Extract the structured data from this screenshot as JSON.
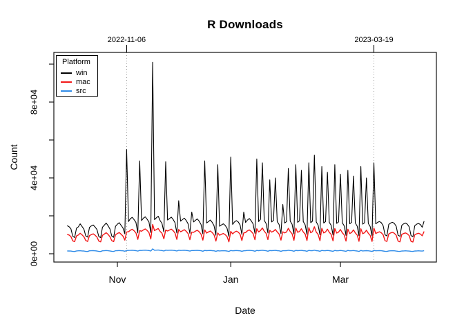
{
  "figure": {
    "title": "R Downloads",
    "background_color": "#FFFFFF"
  },
  "legend": {
    "title": "Platform",
    "position": "top-left"
  },
  "chart_data": {
    "type": "line",
    "title": "R Downloads",
    "xlabel": "Date",
    "ylabel": "Count",
    "x_start_date": "2022-10-05",
    "x_frequency": "daily",
    "n_points": 193,
    "ylim": [
      0,
      101000
    ],
    "grid": false,
    "legend_position": "top-left",
    "vline_color": "#999999",
    "axis_color": "#000000",
    "x_ticks": [
      {
        "date": "2022-11-01",
        "label": "Nov"
      },
      {
        "date": "2023-01-01",
        "label": "Jan"
      },
      {
        "date": "2023-03-01",
        "label": "Mar"
      }
    ],
    "y_ticks": [
      {
        "value": 0,
        "label": "0e+00"
      },
      {
        "value": 20000,
        "label": ""
      },
      {
        "value": 40000,
        "label": "4e+04"
      },
      {
        "value": 60000,
        "label": ""
      },
      {
        "value": 80000,
        "label": "8e+04"
      },
      {
        "value": 100000,
        "label": ""
      }
    ],
    "vlines": [
      {
        "date": "2022-11-06",
        "label": "2022-11-06"
      },
      {
        "date": "2023-03-19",
        "label": "2023-03-19"
      }
    ],
    "series": [
      {
        "name": "win",
        "color": "#000000",
        "width": 1.1,
        "values": [
          14800,
          14300,
          13200,
          9200,
          8600,
          13500,
          14200,
          15800,
          14400,
          13000,
          9400,
          8800,
          13900,
          14700,
          15200,
          14100,
          12800,
          9100,
          8500,
          14000,
          15100,
          16200,
          14800,
          13100,
          9300,
          8700,
          14500,
          15600,
          16400,
          15000,
          13600,
          10500,
          55000,
          17000,
          18500,
          19200,
          18000,
          16500,
          11000,
          49000,
          17500,
          18800,
          19500,
          18200,
          16800,
          11200,
          101000,
          18000,
          19000,
          19800,
          17500,
          16000,
          11500,
          48500,
          17800,
          18600,
          19300,
          18100,
          16400,
          11000,
          28000,
          17200,
          18000,
          18800,
          17600,
          15900,
          10800,
          22000,
          16800,
          17600,
          18400,
          17200,
          15500,
          10500,
          49000,
          16200,
          17000,
          17800,
          16600,
          14800,
          9800,
          47000,
          14500,
          15200,
          15800,
          15000,
          13500,
          9200,
          51000,
          15500,
          16800,
          17500,
          16800,
          15200,
          10200,
          22000,
          16500,
          17800,
          18600,
          17400,
          15800,
          10800,
          50000,
          17000,
          18200,
          48000,
          17600,
          16000,
          11000,
          39000,
          16800,
          17600,
          40000,
          17000,
          15400,
          10600,
          26000,
          16200,
          17000,
          45000,
          17200,
          15600,
          10400,
          47000,
          16600,
          17400,
          44000,
          17000,
          15300,
          10200,
          48000,
          16400,
          17200,
          52000,
          16800,
          15100,
          10000,
          46000,
          16200,
          17000,
          43000,
          16600,
          15000,
          9900,
          47000,
          16000,
          16800,
          42000,
          16400,
          14800,
          9700,
          44000,
          15800,
          16600,
          41000,
          16200,
          14600,
          9500,
          46000,
          15600,
          16400,
          40000,
          16000,
          14400,
          9400,
          48000,
          15800,
          16600,
          17000,
          16400,
          14800,
          10000,
          9400,
          15400,
          16200,
          16600,
          16000,
          14500,
          9800,
          9200,
          15000,
          15800,
          16200,
          15600,
          14200,
          9600,
          9000,
          14800,
          15600,
          16000,
          15400,
          14000,
          17200
        ]
      },
      {
        "name": "mac",
        "color": "#F21616",
        "width": 1.4,
        "values": [
          10200,
          9900,
          9100,
          6800,
          6400,
          9400,
          9900,
          10800,
          10000,
          9000,
          7000,
          6500,
          9600,
          10100,
          10500,
          9800,
          8800,
          6700,
          6300,
          9700,
          10400,
          11100,
          10200,
          9000,
          6900,
          6400,
          10000,
          10700,
          11200,
          10300,
          9300,
          7200,
          11500,
          11600,
          12400,
          12900,
          12100,
          11000,
          7600,
          12200,
          11900,
          12600,
          13100,
          12300,
          11200,
          7800,
          15500,
          12200,
          12800,
          13300,
          11800,
          10800,
          7900,
          12500,
          12000,
          12500,
          13000,
          12200,
          11000,
          7600,
          12800,
          11600,
          12100,
          12700,
          11900,
          10700,
          7400,
          11400,
          11300,
          11900,
          12400,
          11600,
          10400,
          7200,
          12600,
          10900,
          11500,
          12000,
          11200,
          10000,
          6700,
          11000,
          9800,
          10300,
          10700,
          10100,
          9100,
          6300,
          11800,
          10500,
          11400,
          11900,
          11400,
          10300,
          7000,
          11000,
          11200,
          12100,
          12600,
          11800,
          10700,
          7400,
          13200,
          11500,
          12300,
          13600,
          11900,
          10800,
          7500,
          12400,
          11400,
          11900,
          12800,
          11500,
          10400,
          7200,
          11600,
          11000,
          11500,
          13400,
          11700,
          10600,
          7100,
          13600,
          11300,
          11800,
          13200,
          11500,
          10400,
          7000,
          13800,
          11100,
          11700,
          14200,
          11400,
          10200,
          6900,
          13400,
          11000,
          11500,
          13000,
          11300,
          10200,
          6800,
          13300,
          10900,
          11400,
          12800,
          11100,
          10000,
          6700,
          13000,
          10700,
          11200,
          12600,
          11000,
          9900,
          6600,
          13200,
          10600,
          11100,
          12400,
          10800,
          9700,
          6500,
          13600,
          10700,
          11200,
          11600,
          11100,
          10000,
          6900,
          6500,
          10400,
          11000,
          11300,
          10800,
          9800,
          6700,
          6300,
          10200,
          10700,
          11000,
          10500,
          9600,
          6500,
          6200,
          10000,
          10500,
          10800,
          10400,
          9500,
          11800
        ]
      },
      {
        "name": "src",
        "color": "#2E8BE8",
        "width": 1.4,
        "values": [
          1500,
          1450,
          1400,
          1250,
          1200,
          1500,
          1550,
          1600,
          1500,
          1450,
          1250,
          1200,
          1550,
          1600,
          1650,
          1550,
          1450,
          1250,
          1200,
          1550,
          1600,
          1700,
          1600,
          1500,
          1300,
          1250,
          1600,
          1650,
          1700,
          1600,
          1550,
          1350,
          1700,
          1750,
          1800,
          1850,
          1750,
          1650,
          1400,
          1800,
          1750,
          1850,
          1900,
          1800,
          1700,
          1450,
          2600,
          1850,
          1900,
          1950,
          1800,
          1700,
          1450,
          1900,
          1800,
          1850,
          1900,
          1800,
          1700,
          1450,
          1850,
          1750,
          1800,
          1850,
          1750,
          1650,
          1400,
          1700,
          1700,
          1750,
          1800,
          1700,
          1600,
          1350,
          1750,
          1650,
          1700,
          1750,
          1650,
          1550,
          1300,
          1600,
          1500,
          1550,
          1600,
          1550,
          1450,
          1250,
          1700,
          1550,
          1650,
          1700,
          1650,
          1550,
          1300,
          1550,
          1650,
          1750,
          1800,
          1700,
          1600,
          1350,
          1750,
          1650,
          1750,
          1850,
          1700,
          1600,
          1350,
          1700,
          1650,
          1700,
          1800,
          1650,
          1550,
          1300,
          1600,
          1600,
          1650,
          1850,
          1700,
          1600,
          1350,
          1800,
          1650,
          1700,
          1800,
          1650,
          1550,
          1300,
          1800,
          1600,
          1650,
          1900,
          1650,
          1550,
          1300,
          1750,
          1600,
          1650,
          1750,
          1650,
          1500,
          1300,
          1750,
          1550,
          1600,
          1750,
          1600,
          1500,
          1300,
          1750,
          1550,
          1600,
          1700,
          1550,
          1450,
          1250,
          1750,
          1500,
          1550,
          1650,
          1550,
          1400,
          1250,
          1800,
          1550,
          1600,
          1650,
          1600,
          1450,
          1300,
          1250,
          1500,
          1550,
          1600,
          1550,
          1400,
          1300,
          1250,
          1450,
          1500,
          1550,
          1500,
          1400,
          1300,
          1250,
          1450,
          1500,
          1550,
          1500,
          1400,
          1600
        ]
      }
    ]
  }
}
